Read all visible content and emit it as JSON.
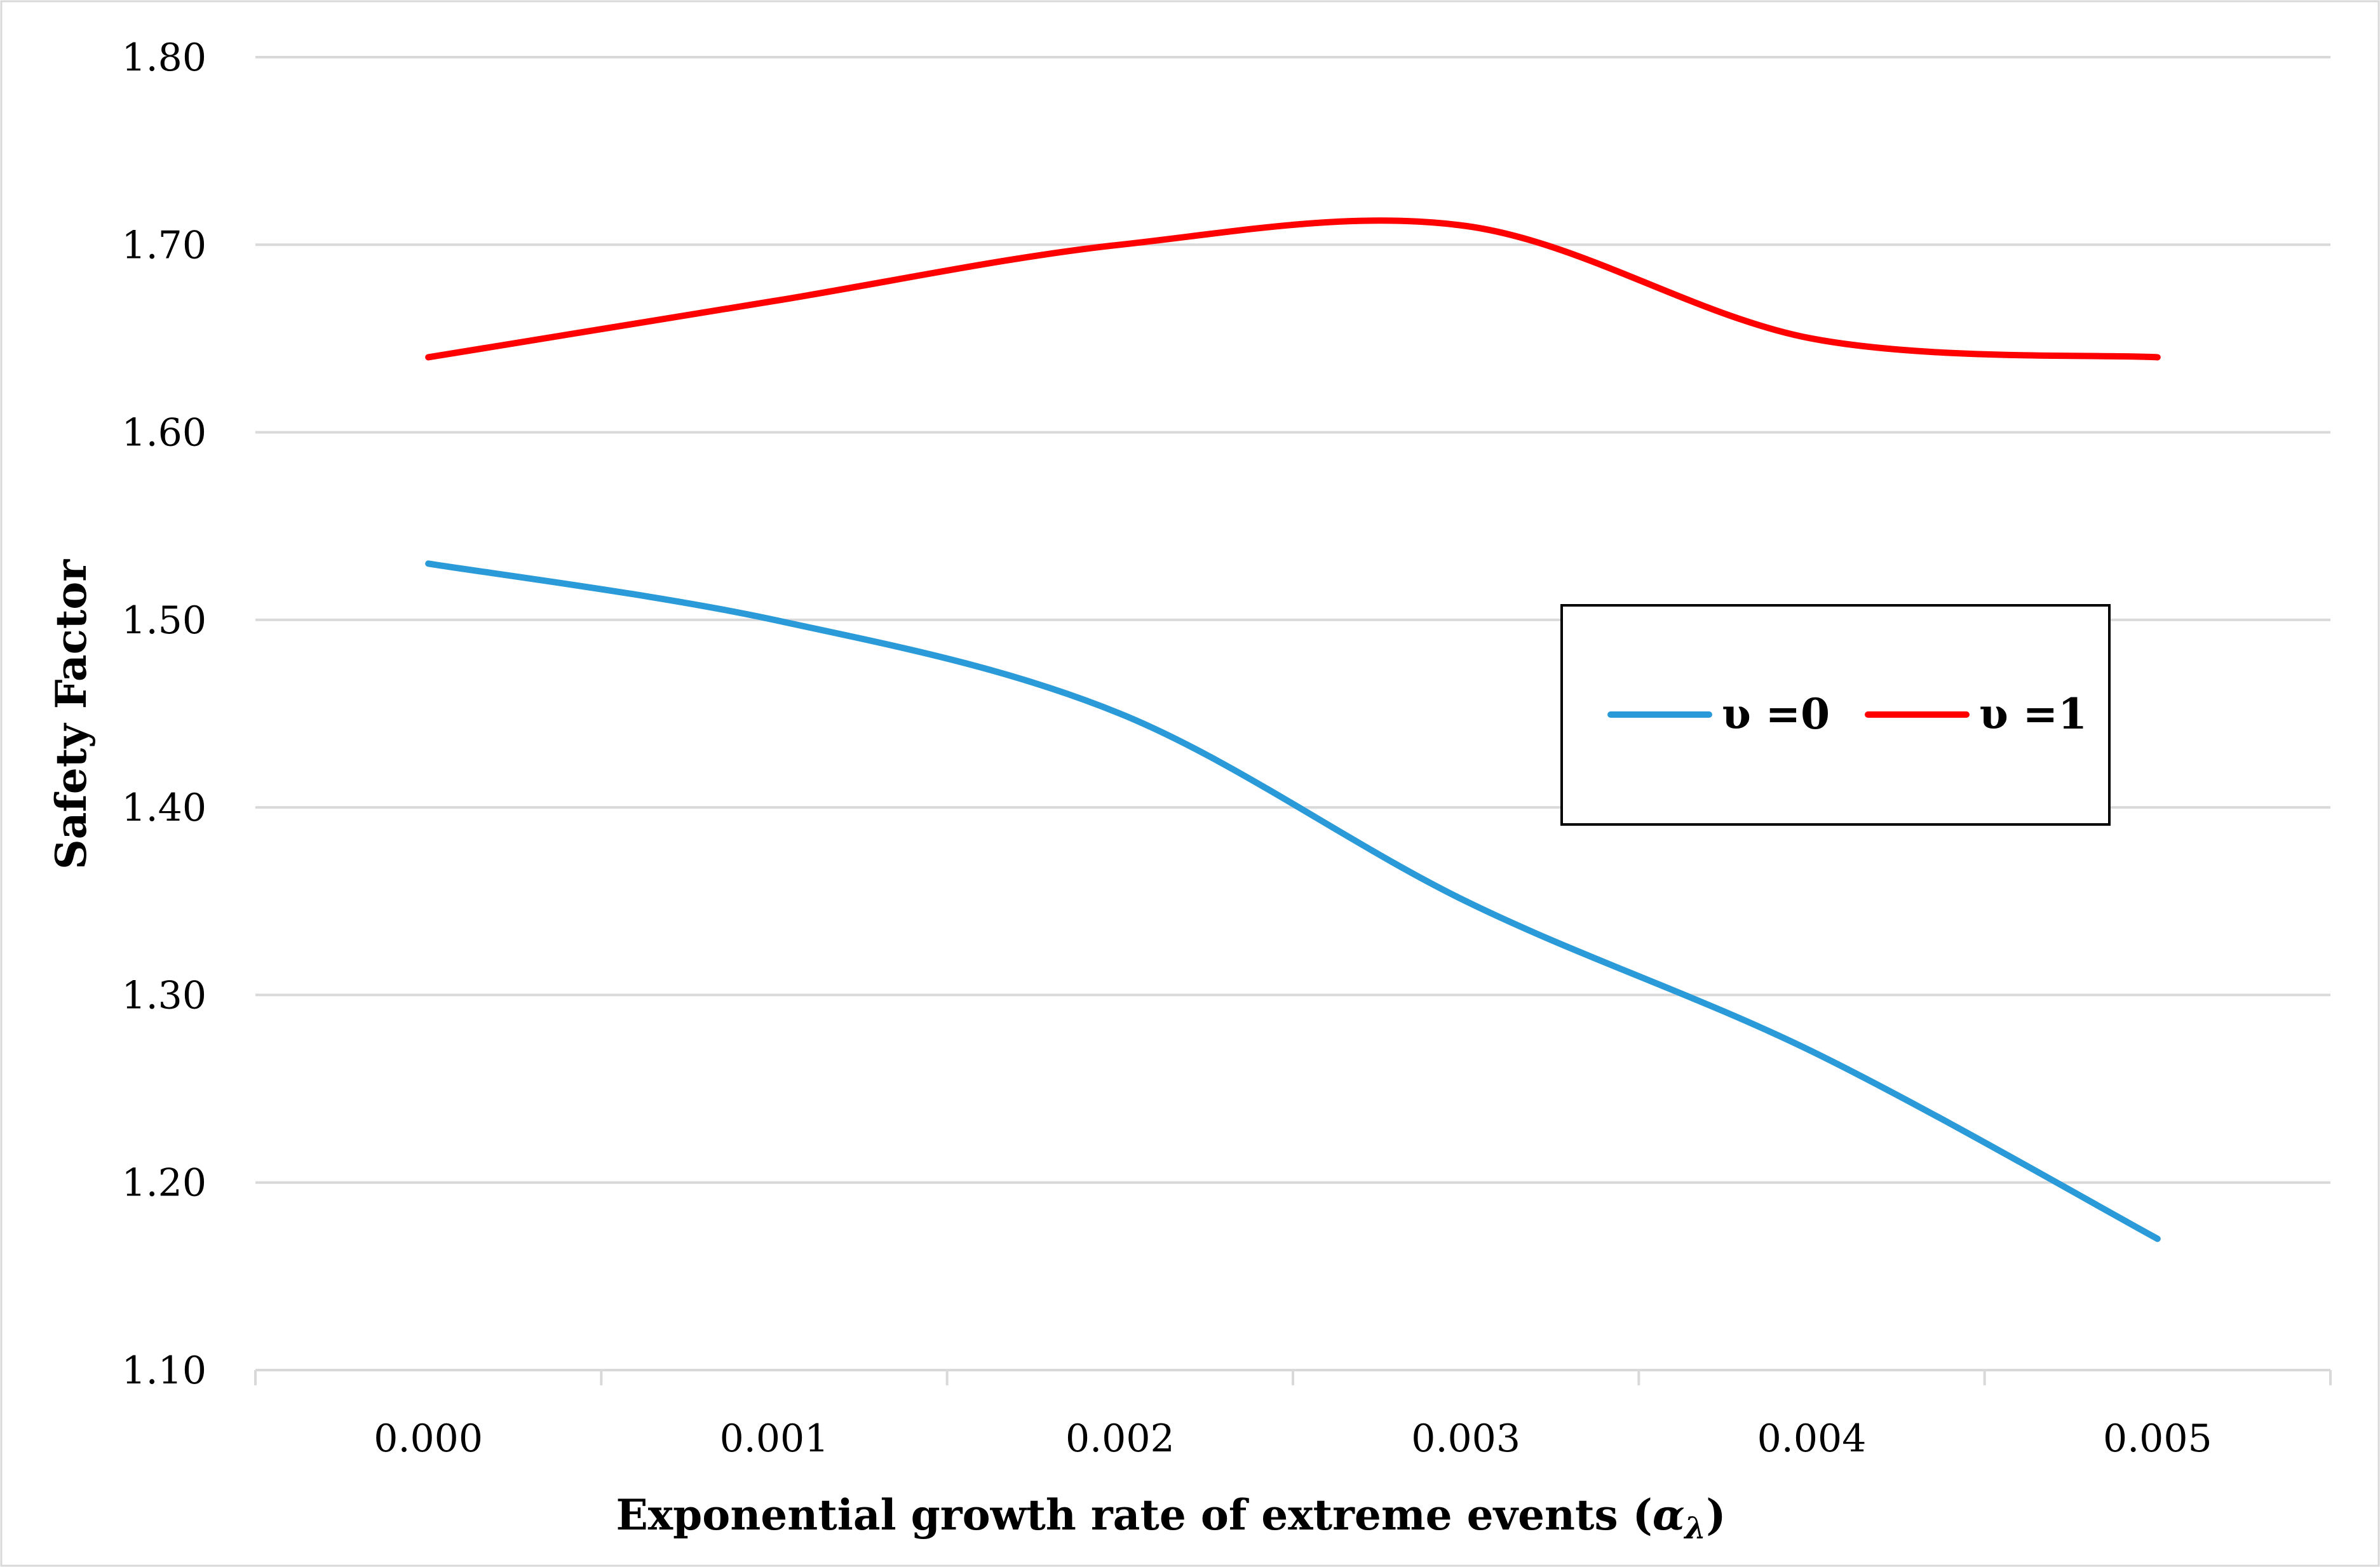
{
  "chart_data": {
    "type": "line",
    "title": "",
    "xlabel": "Exponential growth rate of extreme events (",
    "xlabel_symbol": "α",
    "xlabel_subscript": "λ",
    "xlabel_close": ")",
    "ylabel": "Safety Factor",
    "ylim": [
      1.1,
      1.8
    ],
    "yticks": [
      "1.10",
      "1.20",
      "1.30",
      "1.40",
      "1.50",
      "1.60",
      "1.70",
      "1.80"
    ],
    "ytick_values": [
      1.1,
      1.2,
      1.3,
      1.4,
      1.5,
      1.6,
      1.7,
      1.8
    ],
    "categories": [
      "0.000",
      "0.001",
      "0.002",
      "0.003",
      "0.004",
      "0.005"
    ],
    "grid": true,
    "legend_position": "right-center",
    "series": [
      {
        "name": "υ =0",
        "color": "#2a9bd8",
        "values": [
          1.53,
          1.5,
          1.45,
          1.35,
          1.27,
          1.17
        ]
      },
      {
        "name": "υ =1",
        "color": "#ff0000",
        "values": [
          1.64,
          1.67,
          1.7,
          1.71,
          1.65,
          1.64
        ]
      }
    ]
  }
}
